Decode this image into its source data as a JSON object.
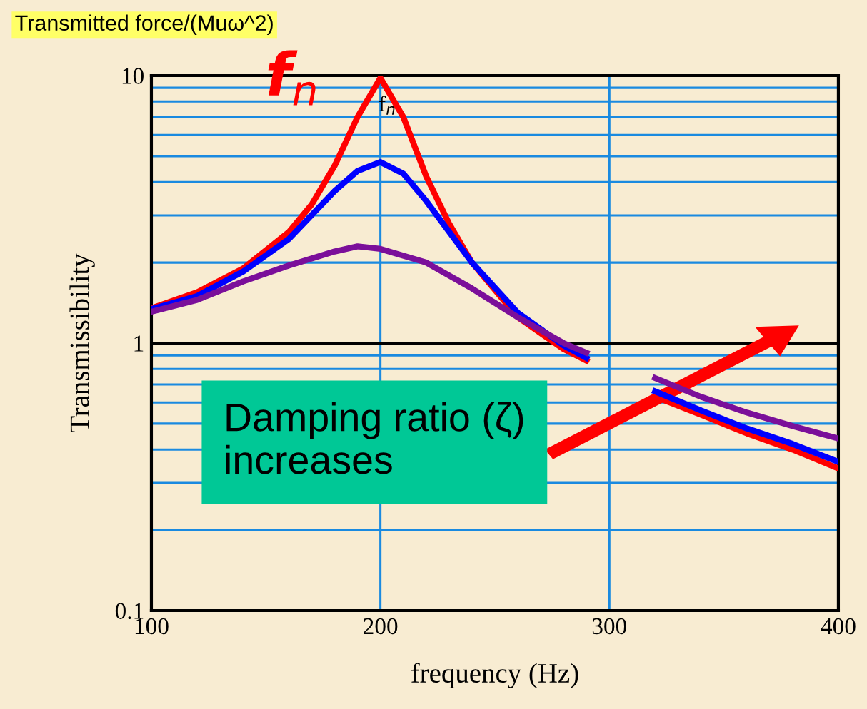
{
  "chart_data": {
    "type": "line",
    "title": "Transmitted force/(Muω^2)",
    "xlabel": "frequency (Hz)",
    "ylabel": "Transmissibility",
    "log": "y",
    "xlim": [
      100,
      400
    ],
    "ylim": [
      0.1,
      10
    ],
    "xticks": [
      100,
      200,
      300,
      400
    ],
    "yticks": [
      0.1,
      1,
      10
    ],
    "grid": true,
    "ref_lines": [
      {
        "axis": "y",
        "value": 1,
        "color": "#000000"
      }
    ],
    "line_style": "solid",
    "marker": "none",
    "series": [
      {
        "color": "#ff0000",
        "x": [
          100,
          120,
          140,
          160,
          170,
          180,
          190,
          200,
          210,
          220,
          230,
          240,
          260,
          280,
          290,
          300,
          320,
          340,
          360,
          380,
          400
        ],
        "values": [
          1.35,
          1.55,
          1.9,
          2.6,
          3.3,
          4.6,
          7.0,
          9.8,
          7.0,
          4.2,
          2.8,
          2.0,
          1.25,
          0.95,
          0.86,
          null,
          0.63,
          0.54,
          0.46,
          0.4,
          0.34
        ]
      },
      {
        "color": "#0000ff",
        "x": [
          100,
          120,
          140,
          160,
          180,
          190,
          200,
          210,
          220,
          240,
          260,
          280,
          290,
          300,
          320,
          340,
          360,
          380,
          400
        ],
        "values": [
          1.34,
          1.5,
          1.85,
          2.45,
          3.7,
          4.4,
          4.75,
          4.3,
          3.4,
          2.0,
          1.3,
          0.98,
          0.88,
          null,
          0.66,
          0.56,
          0.48,
          0.42,
          0.36
        ]
      },
      {
        "color": "#7b0f9a",
        "x": [
          100,
          120,
          140,
          160,
          180,
          190,
          200,
          220,
          240,
          260,
          280,
          290,
          300,
          320,
          340,
          360,
          380,
          400
        ],
        "values": [
          1.31,
          1.45,
          1.7,
          1.95,
          2.2,
          2.3,
          2.25,
          2.0,
          1.6,
          1.25,
          1.0,
          0.92,
          null,
          0.74,
          0.63,
          0.55,
          0.49,
          0.44
        ]
      }
    ],
    "annotations": [
      {
        "text": "f$_{n}$",
        "x": 200,
        "y": 10
      },
      {
        "text": "f$_{n}$",
        "x": 200,
        "y": 10
      },
      "Damping ratio (ζ)\nincreases"
    ]
  }
}
